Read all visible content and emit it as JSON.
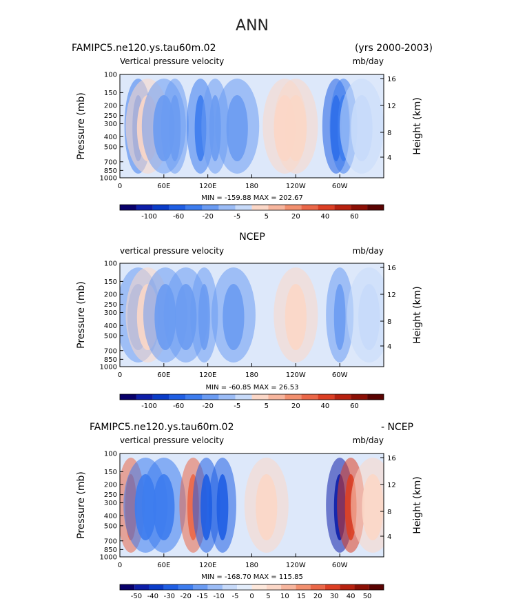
{
  "figure_title": "ANN",
  "colors": {
    "palette_a": [
      "#08006a",
      "#0d1ea8",
      "#0a3cc8",
      "#1f5ee3",
      "#3d7cee",
      "#6a9bf2",
      "#9bbcf6",
      "#c7daf9",
      "#fbd7c7",
      "#f7b69e",
      "#f2906f",
      "#ea6748",
      "#dc3f24",
      "#b7210f",
      "#8b0f05",
      "#5a0302"
    ],
    "palette_b": [
      "#08006a",
      "#0d1ea8",
      "#0a3cc8",
      "#1f5ee3",
      "#3d7cee",
      "#6a9bf2",
      "#9bbcf6",
      "#c7daf9",
      "#e3edfb",
      "#fde8dc",
      "#fbd7c7",
      "#f7b69e",
      "#f2906f",
      "#ea6748",
      "#dc3f24",
      "#b7210f",
      "#8b0f05",
      "#5a0302"
    ]
  },
  "chart_data": [
    {
      "type": "heatmap",
      "title": "FAMIPC5.ne120.ys.tau60m.02",
      "right_title": "(yrs 2000-2003)",
      "variable": "Vertical pressure velocity",
      "units": "mb/day",
      "stats": "MIN = -159.88   MAX = 202.67",
      "ylabel": "Pressure (mb)",
      "ylabel_right": "Height (km)",
      "pressure_ticks": [
        "100",
        "150",
        "200",
        "250",
        "300",
        "400",
        "500",
        "700",
        "850",
        "1000"
      ],
      "height_ticks": [
        "16",
        "12",
        "8",
        "4"
      ],
      "lon_ticks": [
        "0",
        "60E",
        "120E",
        "180",
        "120W",
        "60W"
      ],
      "colorbar_levels": [
        "-100",
        "-60",
        "-20",
        "-5",
        "5",
        "20",
        "40",
        "60"
      ],
      "features": [
        {
          "lon": 25,
          "value": -60
        },
        {
          "lon": 38,
          "value": 20
        },
        {
          "lon": 60,
          "value": -20
        },
        {
          "lon": 75,
          "value": -40
        },
        {
          "lon": 110,
          "value": -60
        },
        {
          "lon": 130,
          "value": -40
        },
        {
          "lon": 160,
          "value": -20
        },
        {
          "lon": 225,
          "value": 20
        },
        {
          "lon": 240,
          "value": 20
        },
        {
          "lon": 295,
          "value": -100
        },
        {
          "lon": 305,
          "value": -60
        },
        {
          "lon": 330,
          "value": 5
        }
      ]
    },
    {
      "type": "heatmap",
      "title": "NCEP",
      "variable": "vertical pressure velocity",
      "units": "mb/day",
      "stats": "MIN = -60.85   MAX =  26.53",
      "ylabel": "Pressure (mb)",
      "ylabel_right": "Height (km)",
      "pressure_ticks": [
        "100",
        "150",
        "200",
        "250",
        "300",
        "400",
        "500",
        "700",
        "850",
        "1000"
      ],
      "height_ticks": [
        "16",
        "12",
        "8",
        "4"
      ],
      "lon_ticks": [
        "0",
        "60E",
        "120E",
        "180",
        "120W",
        "60W"
      ],
      "colorbar_levels": [
        "-100",
        "-60",
        "-20",
        "-5",
        "5",
        "20",
        "40",
        "60"
      ],
      "features": [
        {
          "lon": 25,
          "value": -20
        },
        {
          "lon": 38,
          "value": 20
        },
        {
          "lon": 62,
          "value": -20
        },
        {
          "lon": 90,
          "value": -20
        },
        {
          "lon": 115,
          "value": -40
        },
        {
          "lon": 155,
          "value": -20
        },
        {
          "lon": 240,
          "value": 20
        },
        {
          "lon": 300,
          "value": -40
        },
        {
          "lon": 340,
          "value": 5
        }
      ]
    },
    {
      "type": "heatmap",
      "title": "FAMIPC5.ne120.ys.tau60m.02",
      "right_title": "- NCEP",
      "variable": "vertical pressure velocity",
      "units": "mb/day",
      "stats": "MIN = -168.70   MAX = 115.85",
      "ylabel": "Pressure (mb)",
      "ylabel_right": "Height (km)",
      "pressure_ticks": [
        "100",
        "150",
        "200",
        "250",
        "300",
        "400",
        "500",
        "700",
        "850",
        "1000"
      ],
      "height_ticks": [
        "16",
        "12",
        "8",
        "4"
      ],
      "lon_ticks": [
        "0",
        "60E",
        "120E",
        "180",
        "120W",
        "60W"
      ],
      "colorbar_levels": [
        "-50",
        "-40",
        "-30",
        "-20",
        "-15",
        "-10",
        "-5",
        "0",
        "5",
        "10",
        "15",
        "20",
        "30",
        "40",
        "50"
      ],
      "features": [
        {
          "lon": 15,
          "value": 30
        },
        {
          "lon": 35,
          "value": -20
        },
        {
          "lon": 60,
          "value": -20
        },
        {
          "lon": 100,
          "value": 30
        },
        {
          "lon": 118,
          "value": -30
        },
        {
          "lon": 140,
          "value": -30
        },
        {
          "lon": 200,
          "value": 10
        },
        {
          "lon": 300,
          "value": -50
        },
        {
          "lon": 315,
          "value": 40
        },
        {
          "lon": 345,
          "value": 10
        }
      ]
    }
  ]
}
